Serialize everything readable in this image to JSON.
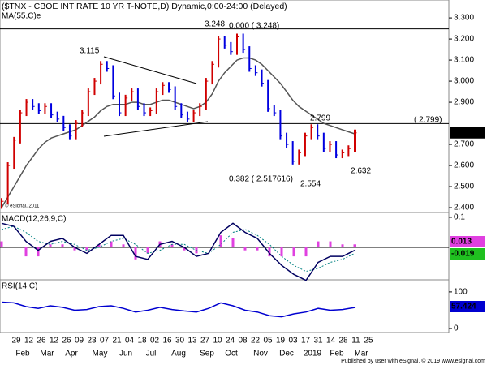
{
  "chart_data": [
    {
      "type": "price",
      "title": "($TNX - CBOE INT RATE 10 YR T-NOTE,D) Dynamic,0:00-24:00 (Delayed)",
      "ma_label": "MA(55,C)e",
      "copyright": "© eSignal, 2011",
      "series": [
        {
          "name": "Close",
          "color": "#d00000",
          "down_color": "#0000e0",
          "values": [
            2.43,
            2.6,
            2.72,
            2.85,
            2.9,
            2.88,
            2.86,
            2.88,
            2.84,
            2.82,
            2.78,
            2.74,
            2.8,
            2.85,
            2.95,
            3.0,
            3.08,
            3.06,
            2.93,
            2.85,
            2.92,
            2.95,
            2.88,
            2.85,
            2.86,
            2.95,
            2.98,
            2.96,
            2.88,
            2.84,
            2.82,
            2.85,
            2.88,
            3.0,
            3.08,
            3.2,
            3.17,
            3.14,
            3.21,
            3.15,
            3.06,
            3.04,
            2.99,
            2.87,
            2.85,
            2.74,
            2.7,
            2.62,
            2.66,
            2.74,
            2.78,
            2.74,
            2.68,
            2.7,
            2.65,
            2.66,
            2.68,
            2.755
          ]
        },
        {
          "name": "MA",
          "color": "#555555",
          "values": [
            2.4,
            2.45,
            2.5,
            2.55,
            2.6,
            2.64,
            2.68,
            2.71,
            2.73,
            2.74,
            2.75,
            2.76,
            2.77,
            2.79,
            2.81,
            2.83,
            2.86,
            2.88,
            2.89,
            2.89,
            2.89,
            2.9,
            2.9,
            2.89,
            2.89,
            2.9,
            2.91,
            2.91,
            2.9,
            2.89,
            2.88,
            2.87,
            2.88,
            2.9,
            2.94,
            3.0,
            3.04,
            3.07,
            3.1,
            3.11,
            3.11,
            3.1,
            3.08,
            3.05,
            3.02,
            2.99,
            2.95,
            2.91,
            2.88,
            2.86,
            2.84,
            2.82,
            2.8,
            2.79,
            2.78,
            2.77,
            2.76,
            2.75
          ]
        }
      ],
      "hlines": [
        3.248,
        2.799,
        2.517616
      ],
      "annotations": [
        "3.248",
        "0.000 ( 3.248)",
        "3.115",
        "2.799",
        "( 2.799)",
        "2.632",
        "2.554",
        "0.382 ( 2.517616)"
      ],
      "last_label": "2.755",
      "ylim": [
        2.377,
        3.385
      ],
      "yticks": [
        {
          "value": 2.4,
          "label": "2.400"
        },
        {
          "value": 2.5,
          "label": "2.500"
        },
        {
          "value": 2.6,
          "label": "2.600"
        },
        {
          "value": 2.7,
          "label": "2.700"
        },
        {
          "value": 2.9,
          "label": "2.900"
        },
        {
          "value": 3.0,
          "label": "3.000"
        },
        {
          "value": 3.1,
          "label": "3.100"
        },
        {
          "value": 3.2,
          "label": "3.200"
        },
        {
          "value": 3.3,
          "label": "3.300"
        }
      ]
    },
    {
      "type": "macd",
      "title": "MACD(12,26,9,C)",
      "series": [
        {
          "name": "MACD",
          "color": "#000060",
          "values": [
            0.08,
            0.07,
            0.02,
            -0.01,
            0.02,
            0.03,
            0.0,
            -0.02,
            0.01,
            0.04,
            0.04,
            -0.03,
            -0.04,
            0.01,
            0.02,
            0.0,
            -0.03,
            -0.02,
            0.05,
            0.08,
            0.05,
            0.03,
            -0.02,
            -0.06,
            -0.09,
            -0.11,
            -0.05,
            -0.03,
            -0.03,
            -0.01
          ]
        },
        {
          "name": "Signal",
          "color": "#008080",
          "values": [
            0.06,
            0.07,
            0.05,
            0.02,
            0.01,
            0.02,
            0.01,
            -0.01,
            0.0,
            0.02,
            0.03,
            0.01,
            -0.02,
            -0.01,
            0.01,
            0.01,
            -0.01,
            -0.02,
            0.01,
            0.05,
            0.06,
            0.04,
            0.01,
            -0.03,
            -0.06,
            -0.08,
            -0.07,
            -0.05,
            -0.04,
            -0.02
          ]
        },
        {
          "name": "Histogram",
          "color": "#e040e0",
          "values": [
            0.02,
            0.0,
            -0.03,
            -0.03,
            0.01,
            0.01,
            -0.01,
            -0.01,
            0.01,
            0.02,
            0.01,
            -0.04,
            -0.02,
            0.02,
            0.01,
            -0.01,
            -0.02,
            0.0,
            0.04,
            0.03,
            -0.01,
            -0.01,
            -0.03,
            -0.03,
            -0.03,
            -0.03,
            0.02,
            0.02,
            0.01,
            0.01
          ]
        }
      ],
      "value_labels": [
        "0.013",
        "-0.019"
      ],
      "ylim": [
        -0.108,
        0.116
      ],
      "yticks": [
        0.1
      ]
    },
    {
      "type": "rsi",
      "title": "RSI(14,C)",
      "series": [
        {
          "name": "RSI",
          "color": "#0000d0",
          "values": [
            72,
            70,
            60,
            55,
            62,
            58,
            50,
            52,
            60,
            62,
            55,
            45,
            50,
            58,
            52,
            48,
            45,
            55,
            70,
            62,
            50,
            45,
            35,
            32,
            40,
            45,
            55,
            50,
            52,
            57.4
          ]
        }
      ],
      "value_labels": [
        "57.424"
      ],
      "ylim": [
        -11,
        133
      ],
      "yticks": [
        0,
        100
      ]
    },
    {
      "type": "axis",
      "days": [
        "29",
        "12",
        "26",
        "12",
        "26",
        "09",
        "23",
        "07",
        "21",
        "04",
        "18",
        "02",
        "16",
        "30",
        "13",
        "27",
        "10",
        "24",
        "08",
        "22",
        "05",
        "19",
        "03",
        "17",
        "31",
        "14",
        "28",
        "11",
        "25"
      ],
      "months": [
        "Feb",
        "Mar",
        "Apr",
        "May",
        "Jun",
        "Jul",
        "Aug",
        "Sep",
        "Oct",
        "Nov",
        "Dec",
        "2019",
        "Feb",
        "Mar"
      ],
      "footer": "Published by user with eSignal, © 2019 www.esignal.com"
    }
  ]
}
